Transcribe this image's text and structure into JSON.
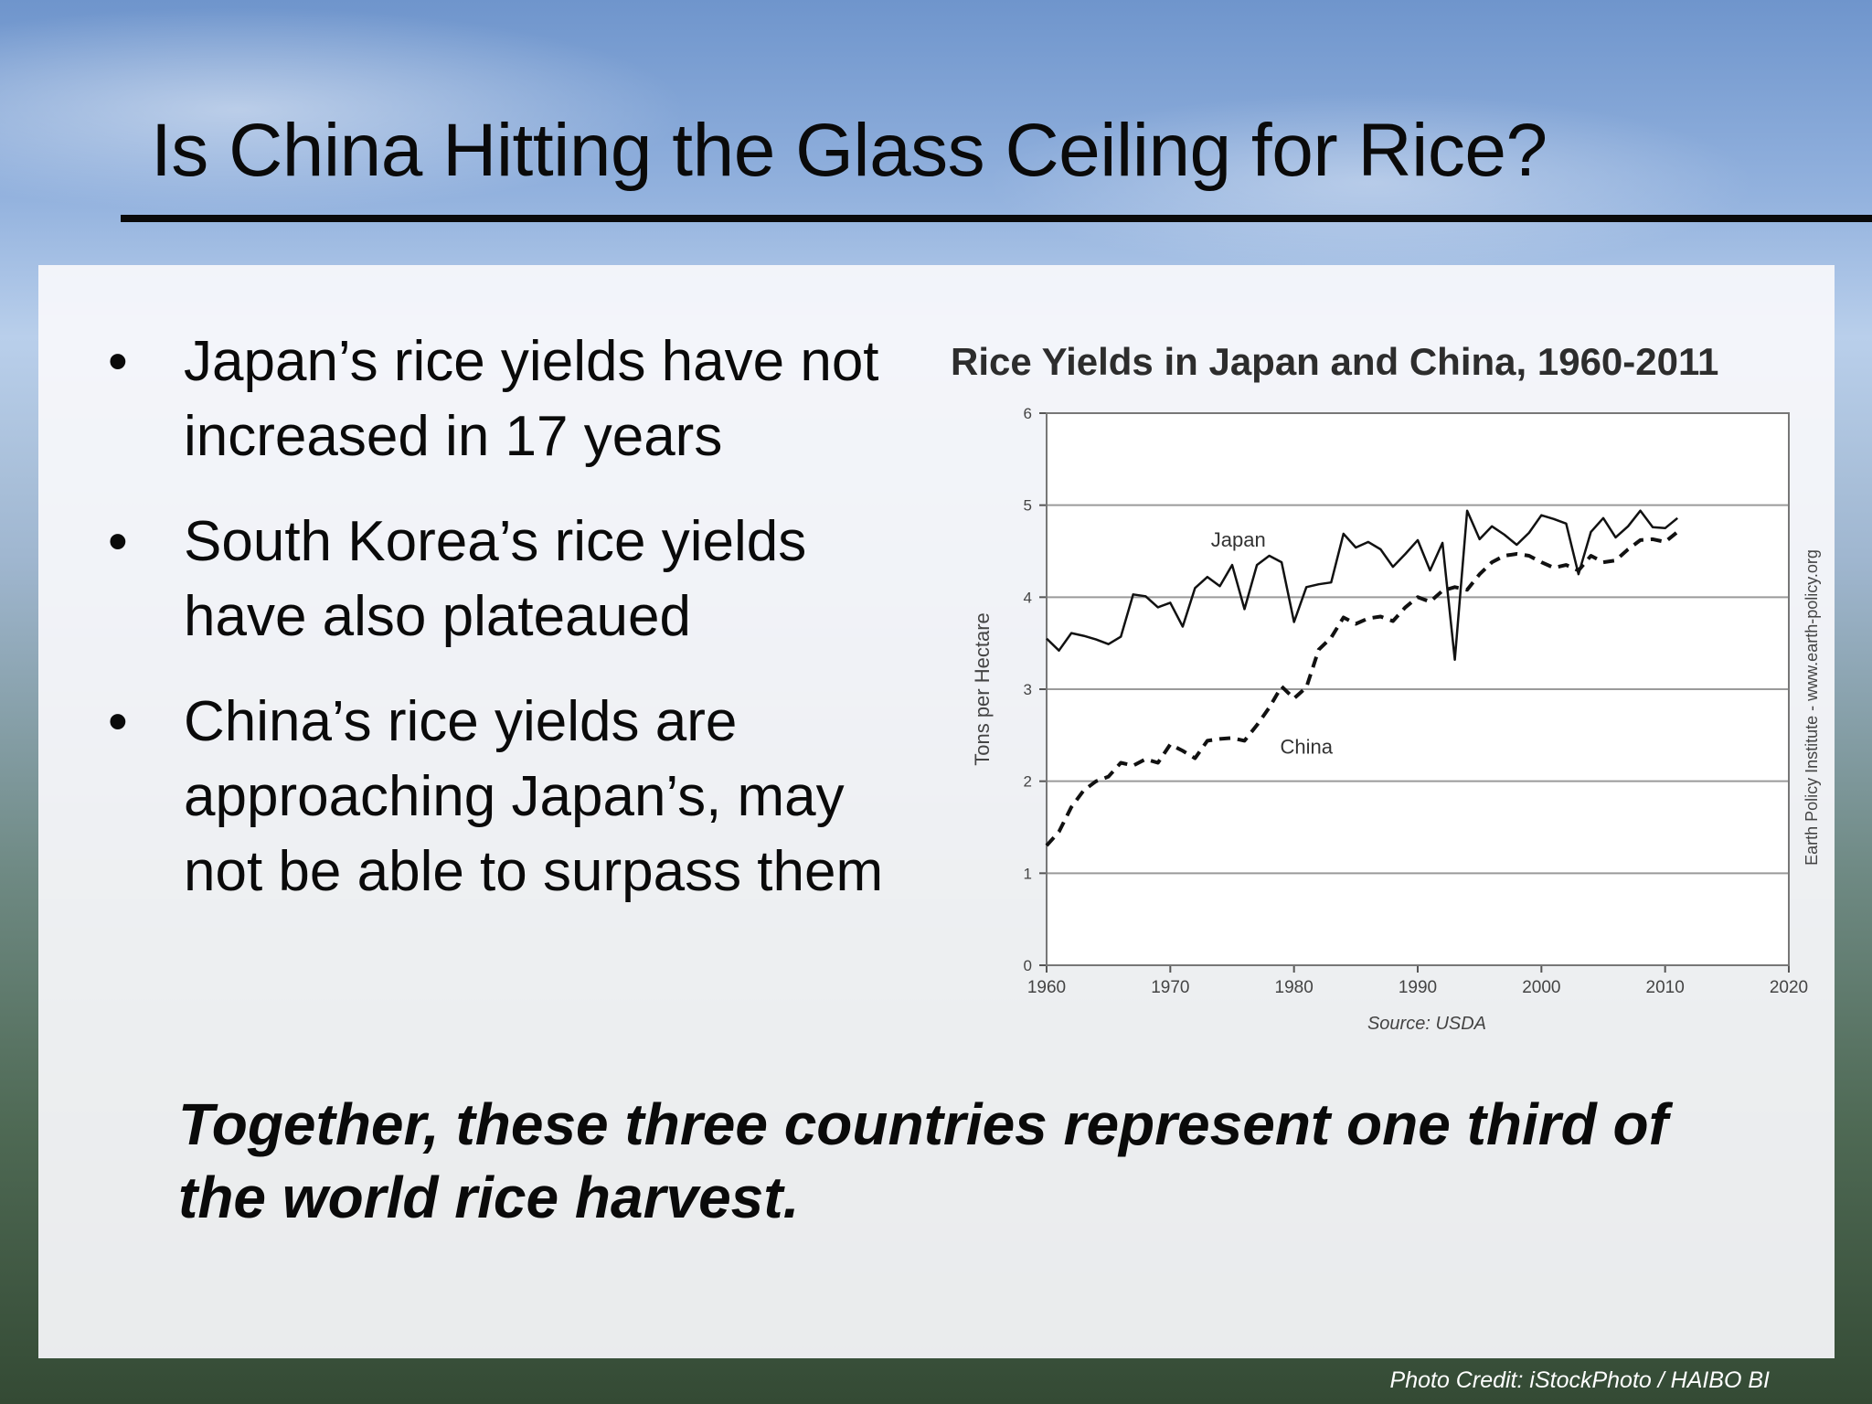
{
  "slide": {
    "title": "Is China Hitting the Glass Ceiling for Rice?",
    "bullet_char": "•",
    "bullets": [
      "Japan’s rice yields have not increased in 17 years",
      "South Korea’s rice yields have also plateaued",
      "China’s rice yields are approaching Japan’s, may not be able to surpass them"
    ],
    "summary": "Together, these three countries represent one third of the world rice harvest.",
    "photo_credit": "Photo Credit: iStockPhoto / HAIBO BI"
  },
  "chart_data": {
    "type": "line",
    "title": "Rice Yields in Japan and China, 1960-2011",
    "ylabel": "Tons per Hectare",
    "xlabel": "",
    "source": "Source: USDA",
    "side_note": "Earth Policy Institute - www.earth-policy.org",
    "xlim": [
      1960,
      2020
    ],
    "ylim": [
      0,
      6
    ],
    "x_ticks": [
      1960,
      1970,
      1980,
      1990,
      2000,
      2010,
      2020
    ],
    "y_ticks": [
      0,
      1,
      2,
      3,
      4,
      5,
      6
    ],
    "grid": "horizontal",
    "series": [
      {
        "name": "Japan",
        "style": "solid",
        "x": [
          1960,
          1961,
          1962,
          1963,
          1964,
          1965,
          1966,
          1967,
          1968,
          1969,
          1970,
          1971,
          1972,
          1973,
          1974,
          1975,
          1976,
          1977,
          1978,
          1979,
          1980,
          1981,
          1982,
          1983,
          1984,
          1985,
          1986,
          1987,
          1988,
          1989,
          1990,
          1991,
          1992,
          1993,
          1994,
          1995,
          1996,
          1997,
          1998,
          1999,
          2000,
          2001,
          2002,
          2003,
          2004,
          2005,
          2006,
          2007,
          2008,
          2009,
          2010,
          2011
        ],
        "y": [
          3.55,
          3.42,
          3.61,
          3.58,
          3.54,
          3.49,
          3.57,
          4.03,
          4.01,
          3.89,
          3.94,
          3.68,
          4.1,
          4.22,
          4.12,
          4.35,
          3.87,
          4.35,
          4.45,
          4.38,
          3.73,
          4.11,
          4.14,
          4.16,
          4.69,
          4.54,
          4.6,
          4.52,
          4.33,
          4.47,
          4.62,
          4.29,
          4.59,
          3.32,
          4.94,
          4.63,
          4.77,
          4.68,
          4.57,
          4.7,
          4.89,
          4.85,
          4.8,
          4.25,
          4.71,
          4.86,
          4.65,
          4.77,
          4.94,
          4.76,
          4.75,
          4.86
        ]
      },
      {
        "name": "China",
        "style": "dashed",
        "x": [
          1960,
          1961,
          1962,
          1963,
          1964,
          1965,
          1966,
          1967,
          1968,
          1969,
          1970,
          1971,
          1972,
          1973,
          1974,
          1975,
          1976,
          1977,
          1978,
          1979,
          1980,
          1981,
          1982,
          1983,
          1984,
          1985,
          1986,
          1987,
          1988,
          1989,
          1990,
          1991,
          1992,
          1993,
          1994,
          1995,
          1996,
          1997,
          1998,
          1999,
          2000,
          2001,
          2002,
          2003,
          2004,
          2005,
          2006,
          2007,
          2008,
          2009,
          2010,
          2011
        ],
        "y": [
          1.3,
          1.45,
          1.72,
          1.9,
          2.0,
          2.05,
          2.2,
          2.17,
          2.24,
          2.2,
          2.4,
          2.33,
          2.25,
          2.44,
          2.46,
          2.47,
          2.44,
          2.61,
          2.8,
          3.03,
          2.9,
          3.02,
          3.43,
          3.56,
          3.78,
          3.71,
          3.77,
          3.79,
          3.74,
          3.89,
          4.0,
          3.95,
          4.07,
          4.11,
          4.08,
          4.25,
          4.38,
          4.45,
          4.47,
          4.45,
          4.38,
          4.32,
          4.35,
          4.29,
          4.45,
          4.38,
          4.4,
          4.52,
          4.62,
          4.63,
          4.6,
          4.71
        ]
      }
    ]
  }
}
